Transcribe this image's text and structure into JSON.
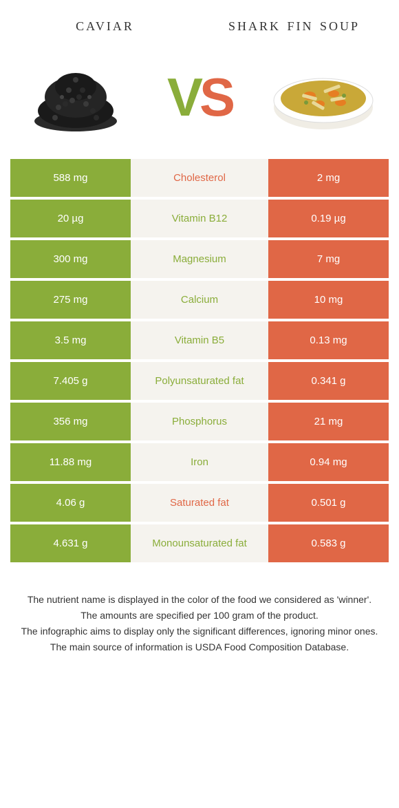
{
  "left_food": {
    "title": "caviar"
  },
  "right_food": {
    "title": "shark fin soup"
  },
  "vs": {
    "v": "V",
    "s": "S"
  },
  "colors": {
    "green": "#8aad3a",
    "orange": "#e06746",
    "mid_bg": "#f5f3ee",
    "white": "#ffffff"
  },
  "rows": [
    {
      "left": "588 mg",
      "mid": "Cholesterol",
      "right": "2 mg",
      "winner": "orange"
    },
    {
      "left": "20 µg",
      "mid": "Vitamin B12",
      "right": "0.19 µg",
      "winner": "green"
    },
    {
      "left": "300 mg",
      "mid": "Magnesium",
      "right": "7 mg",
      "winner": "green"
    },
    {
      "left": "275 mg",
      "mid": "Calcium",
      "right": "10 mg",
      "winner": "green"
    },
    {
      "left": "3.5 mg",
      "mid": "Vitamin B5",
      "right": "0.13 mg",
      "winner": "green"
    },
    {
      "left": "7.405 g",
      "mid": "Polyunsaturated fat",
      "right": "0.341 g",
      "winner": "green"
    },
    {
      "left": "356 mg",
      "mid": "Phosphorus",
      "right": "21 mg",
      "winner": "green"
    },
    {
      "left": "11.88 mg",
      "mid": "Iron",
      "right": "0.94 mg",
      "winner": "green"
    },
    {
      "left": "4.06 g",
      "mid": "Saturated fat",
      "right": "0.501 g",
      "winner": "orange"
    },
    {
      "left": "4.631 g",
      "mid": "Monounsaturated fat",
      "right": "0.583 g",
      "winner": "green"
    }
  ],
  "footer": {
    "line1": "The nutrient name is displayed in the color of the food we considered as 'winner'.",
    "line2": "The amounts are specified per 100 gram of the product.",
    "line3": "The infographic aims to display only the significant differences, ignoring minor ones.",
    "line4": "The main source of information is USDA Food Composition Database."
  }
}
